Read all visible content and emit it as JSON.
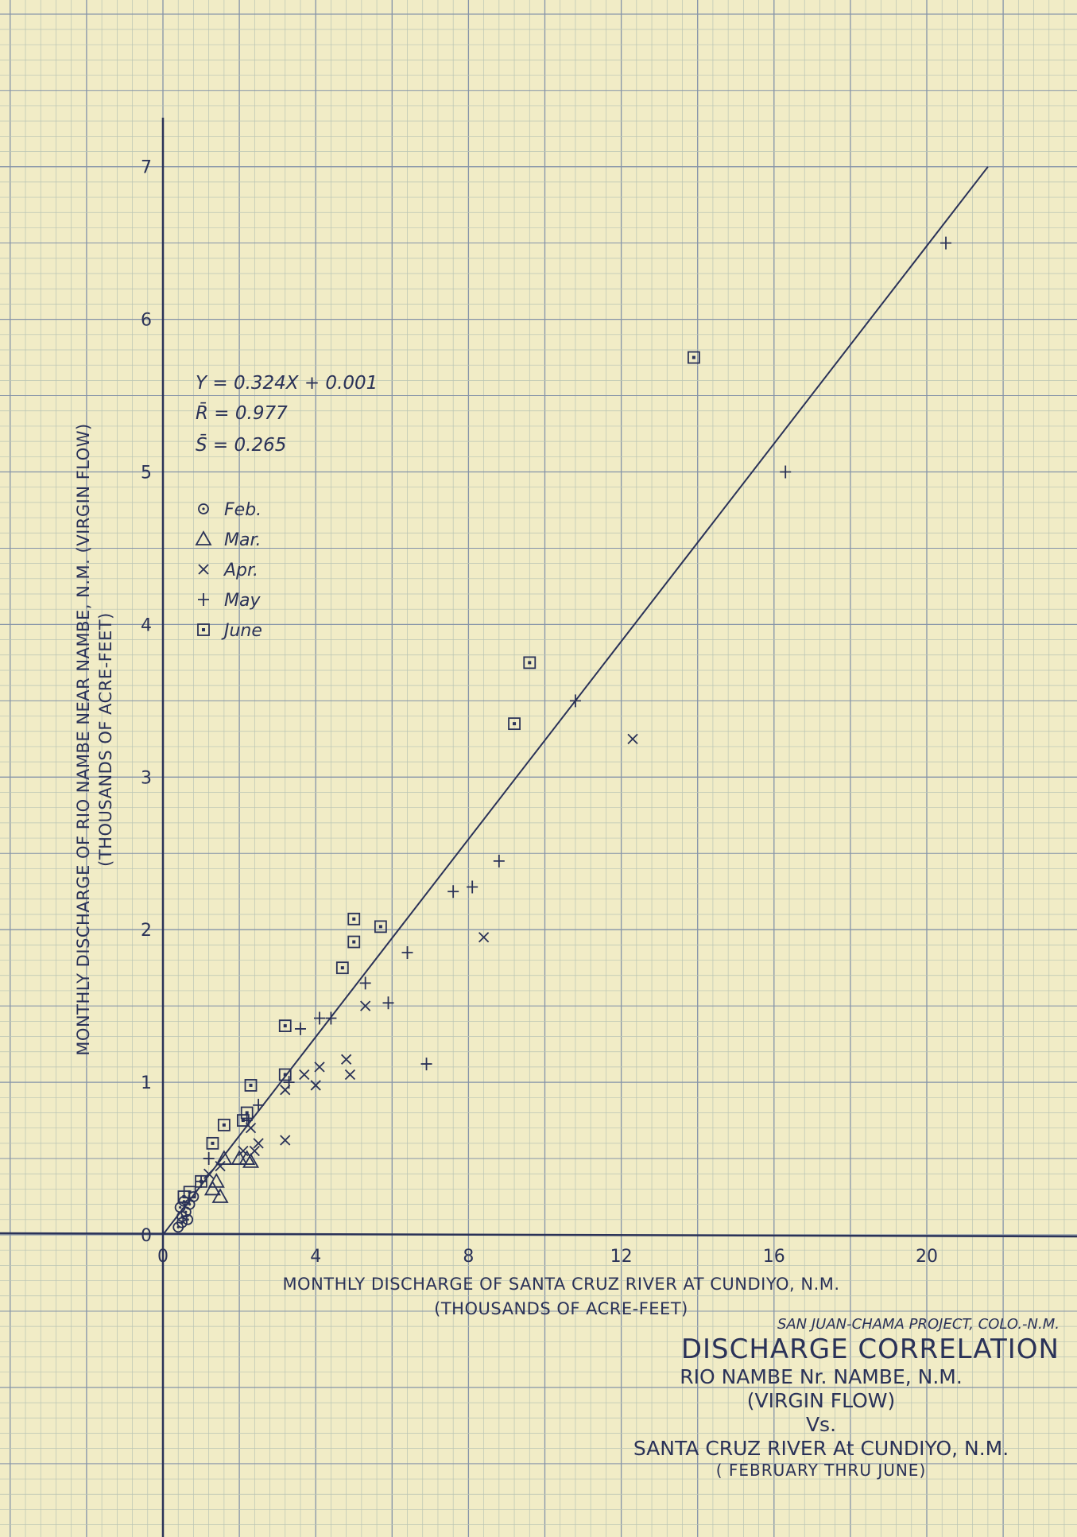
{
  "chart_data": {
    "type": "scatter",
    "xlabel": "MONTHLY  DISCHARGE OF SANTA CRUZ RIVER AT CUNDIYO, N.M.",
    "xlabel_units": "(THOUSANDS OF ACRE-FEET)",
    "ylabel": "MONTHLY DISCHARGE OF RIO NAMBE NEAR NAMBE, N.M. (VIRGIN FLOW)",
    "ylabel_units": "(THOUSANDS OF ACRE-FEET)",
    "xlim": [
      0,
      22
    ],
    "ylim": [
      0,
      7.5
    ],
    "x_ticks": [
      0,
      4,
      8,
      12,
      16,
      20
    ],
    "x_tick_labels": [
      "0",
      "4",
      "8",
      "12",
      "16",
      "20"
    ],
    "y_ticks": [
      0,
      1,
      2,
      3,
      4,
      5,
      6,
      7
    ],
    "y_tick_labels": [
      "0",
      "1",
      "2",
      "3",
      "4",
      "5",
      "6",
      "7"
    ],
    "grid": true,
    "equation": "Y = 0.324X + 0.001",
    "r_label": "R̄ = 0.977",
    "s_label": "S̄ = 0.265",
    "regression": {
      "slope": 0.324,
      "intercept": 0.001,
      "x_range": [
        0,
        21.6
      ]
    },
    "legend_placement": "upper-left",
    "series": [
      {
        "name": "Feb.",
        "marker": "circle-dot",
        "points": [
          [
            0.4,
            0.05
          ],
          [
            0.5,
            0.12
          ],
          [
            0.45,
            0.18
          ],
          [
            0.55,
            0.22
          ],
          [
            0.6,
            0.15
          ],
          [
            0.7,
            0.2
          ],
          [
            0.8,
            0.25
          ],
          [
            0.5,
            0.08
          ],
          [
            0.65,
            0.1
          ]
        ]
      },
      {
        "name": "Mar.",
        "marker": "triangle",
        "points": [
          [
            1.3,
            0.3
          ],
          [
            1.4,
            0.35
          ],
          [
            1.5,
            0.25
          ],
          [
            2.0,
            0.5
          ],
          [
            2.2,
            0.5
          ],
          [
            2.3,
            0.48
          ],
          [
            1.6,
            0.5
          ]
        ]
      },
      {
        "name": "Apr.",
        "marker": "x",
        "points": [
          [
            1.2,
            0.4
          ],
          [
            1.5,
            0.45
          ],
          [
            2.1,
            0.55
          ],
          [
            2.3,
            0.7
          ],
          [
            2.4,
            0.55
          ],
          [
            2.5,
            0.6
          ],
          [
            3.2,
            0.95
          ],
          [
            3.2,
            0.62
          ],
          [
            3.7,
            1.05
          ],
          [
            4.0,
            0.98
          ],
          [
            4.1,
            1.1
          ],
          [
            4.9,
            1.05
          ],
          [
            4.8,
            1.15
          ],
          [
            5.3,
            1.5
          ],
          [
            8.4,
            1.95
          ],
          [
            12.3,
            3.25
          ]
        ]
      },
      {
        "name": "May",
        "marker": "plus",
        "points": [
          [
            1.0,
            0.35
          ],
          [
            1.2,
            0.5
          ],
          [
            2.2,
            0.75
          ],
          [
            2.5,
            0.85
          ],
          [
            3.3,
            1.0
          ],
          [
            3.6,
            1.35
          ],
          [
            4.1,
            1.42
          ],
          [
            4.4,
            1.42
          ],
          [
            5.3,
            1.65
          ],
          [
            5.9,
            1.52
          ],
          [
            6.4,
            1.85
          ],
          [
            6.9,
            1.12
          ],
          [
            7.6,
            2.25
          ],
          [
            8.1,
            2.28
          ],
          [
            8.8,
            2.45
          ],
          [
            10.8,
            3.5
          ],
          [
            16.3,
            5.0
          ],
          [
            20.5,
            6.5
          ]
        ]
      },
      {
        "name": "June",
        "marker": "square-dot",
        "points": [
          [
            0.55,
            0.25
          ],
          [
            0.7,
            0.28
          ],
          [
            1.0,
            0.35
          ],
          [
            1.3,
            0.6
          ],
          [
            1.6,
            0.72
          ],
          [
            2.1,
            0.75
          ],
          [
            2.2,
            0.8
          ],
          [
            2.3,
            0.98
          ],
          [
            3.2,
            1.05
          ],
          [
            3.2,
            1.37
          ],
          [
            4.7,
            1.75
          ],
          [
            5.0,
            1.92
          ],
          [
            5.0,
            2.07
          ],
          [
            5.7,
            2.02
          ],
          [
            9.2,
            3.35
          ],
          [
            9.6,
            3.75
          ],
          [
            13.9,
            5.75
          ]
        ]
      }
    ]
  },
  "title_block": {
    "project": "SAN JUAN-CHAMA PROJECT, COLO.-N.M.",
    "title": "DISCHARGE CORRELATION",
    "line1": "RIO NAMBE Nr. NAMBE, N.M.",
    "line2": "(VIRGIN FLOW)",
    "line3": "Vs.",
    "line4": "SANTA CRUZ RIVER At CUNDIYO, N.M.",
    "line5": "( FEBRUARY THRU JUNE)"
  },
  "colors": {
    "paper": "#f1ecc6",
    "grid_minor": "#b9c4b4",
    "grid_major": "#8593a8",
    "ink": "#2a3258"
  }
}
